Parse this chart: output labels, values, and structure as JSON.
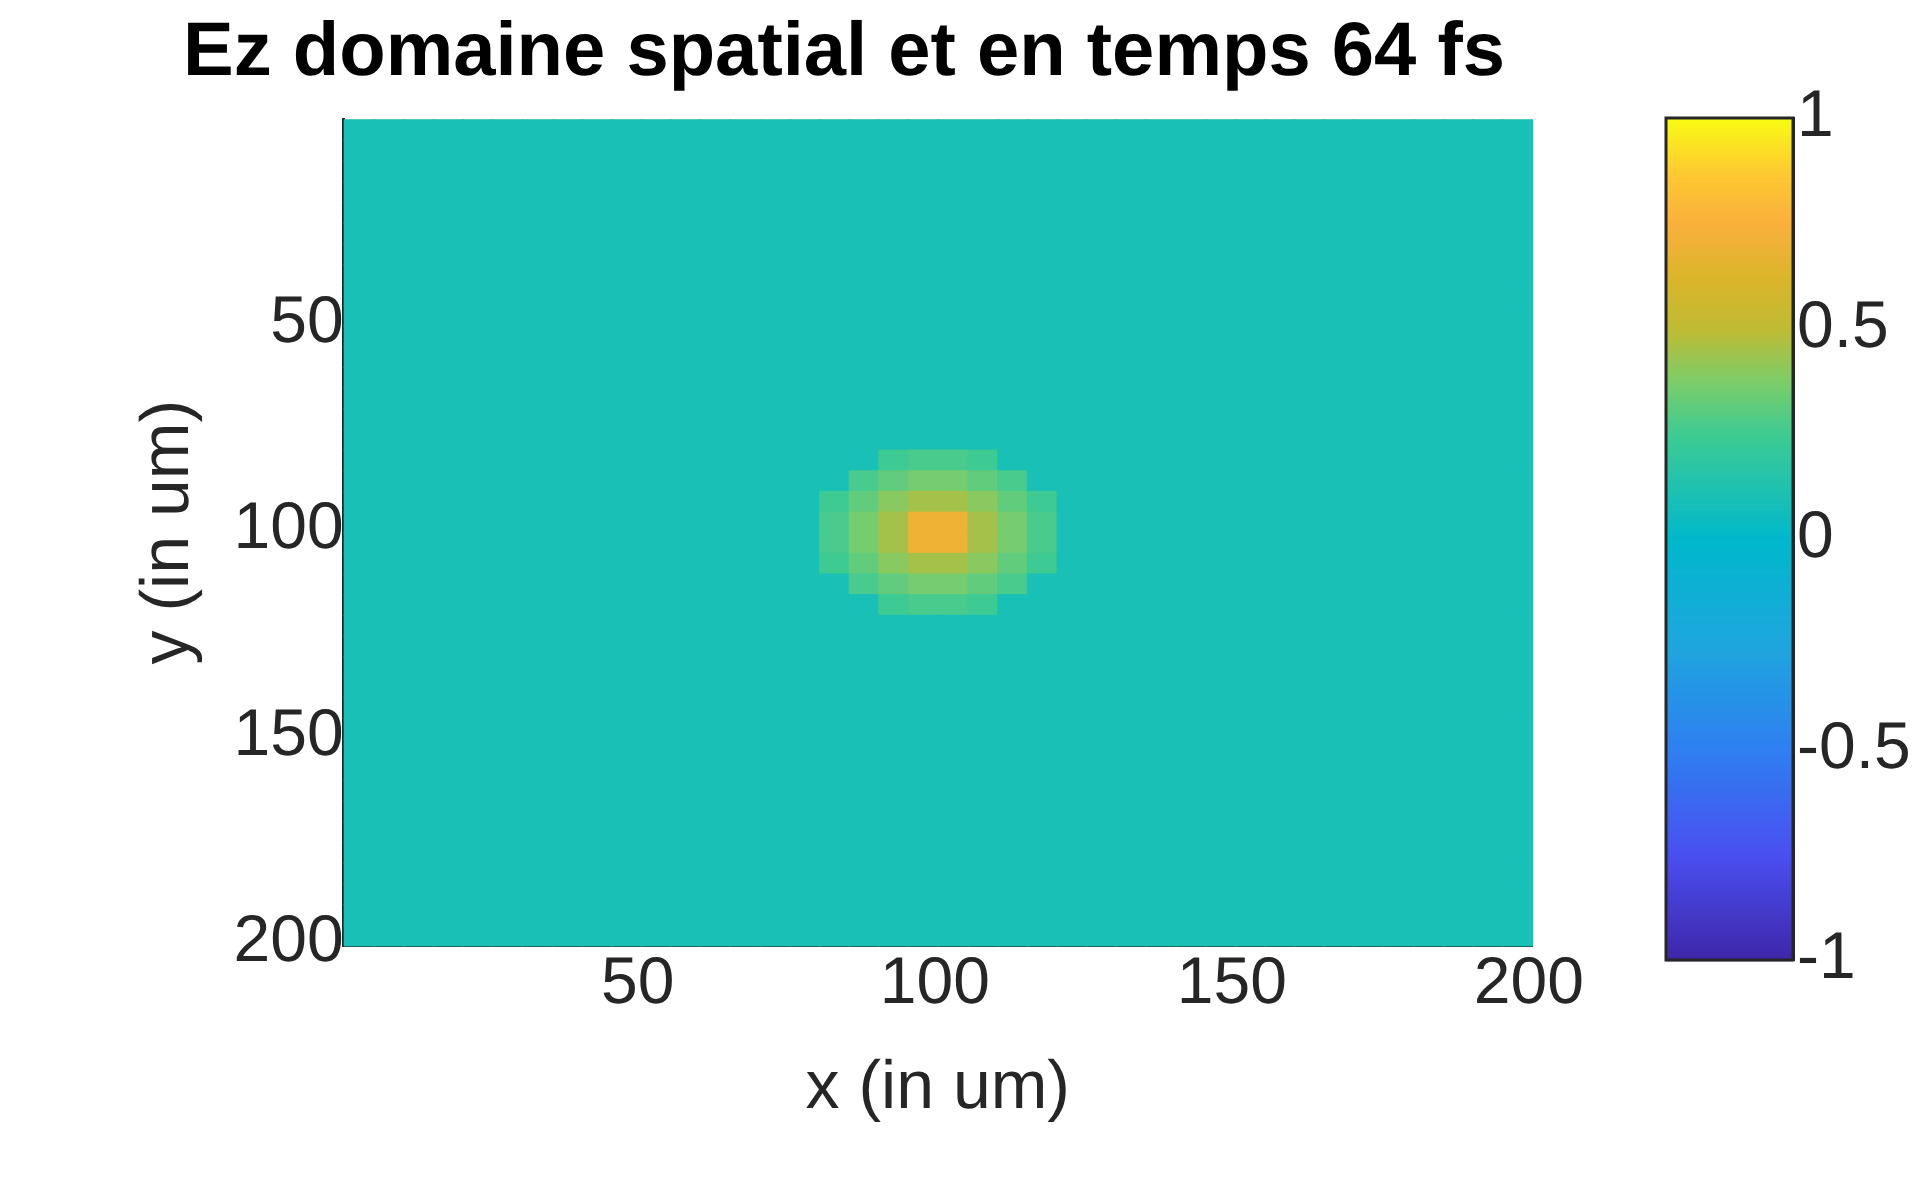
{
  "chart_data": {
    "type": "heatmap",
    "title": "Ez domaine spatial et en temps 64 fs",
    "xlabel": "x (in um)",
    "ylabel": "y (in um)",
    "xlim": [
      0.5,
      200.5
    ],
    "xticks": [
      50,
      100,
      150,
      200
    ],
    "ylim": [
      200.5,
      0.5
    ],
    "yticks": [
      50,
      100,
      150,
      200
    ],
    "clim": [
      -1,
      1
    ],
    "cticks": [
      -1,
      -0.5,
      0,
      0.5,
      1
    ],
    "cells": [
      [
        0.1,
        0.1,
        0.1,
        0.1,
        0.1,
        0.1,
        0.1,
        0.1,
        0.1,
        0.1,
        0.1,
        0.1,
        0.1,
        0.1,
        0.1,
        0.1,
        0.1,
        0.1,
        0.1,
        0.1,
        0.1,
        0.1,
        0.1,
        0.1,
        0.1,
        0.1,
        0.1,
        0.1,
        0.1,
        0.1,
        0.1,
        0.1,
        0.1,
        0.1,
        0.1,
        0.1,
        0.1,
        0.1,
        0.1,
        0.1
      ],
      [
        0.1,
        0.1,
        0.1,
        0.1,
        0.1,
        0.1,
        0.1,
        0.1,
        0.1,
        0.1,
        0.1,
        0.1,
        0.1,
        0.1,
        0.1,
        0.1,
        0.1,
        0.1,
        0.1,
        0.1,
        0.1,
        0.1,
        0.1,
        0.1,
        0.1,
        0.1,
        0.1,
        0.1,
        0.1,
        0.1,
        0.1,
        0.1,
        0.1,
        0.1,
        0.1,
        0.1,
        0.1,
        0.1,
        0.1,
        0.1
      ],
      [
        0.1,
        0.1,
        0.1,
        0.1,
        0.1,
        0.1,
        0.1,
        0.1,
        0.1,
        0.1,
        0.1,
        0.1,
        0.1,
        0.1,
        0.1,
        0.1,
        0.1,
        0.1,
        0.1,
        0.1,
        0.1,
        0.1,
        0.1,
        0.1,
        0.1,
        0.1,
        0.1,
        0.1,
        0.1,
        0.1,
        0.1,
        0.1,
        0.1,
        0.1,
        0.1,
        0.1,
        0.1,
        0.1,
        0.1,
        0.1
      ],
      [
        0.1,
        0.1,
        0.1,
        0.1,
        0.1,
        0.1,
        0.1,
        0.1,
        0.1,
        0.1,
        0.1,
        0.1,
        0.1,
        0.1,
        0.1,
        0.1,
        0.1,
        0.1,
        0.1,
        0.1,
        0.1,
        0.1,
        0.1,
        0.1,
        0.1,
        0.1,
        0.1,
        0.1,
        0.1,
        0.1,
        0.1,
        0.1,
        0.1,
        0.1,
        0.1,
        0.1,
        0.1,
        0.1,
        0.1,
        0.1
      ],
      [
        0.1,
        0.1,
        0.1,
        0.1,
        0.1,
        0.1,
        0.1,
        0.1,
        0.1,
        0.1,
        0.1,
        0.1,
        0.1,
        0.1,
        0.1,
        0.1,
        0.1,
        0.1,
        0.1,
        0.1,
        0.1,
        0.1,
        0.1,
        0.1,
        0.1,
        0.1,
        0.1,
        0.1,
        0.1,
        0.1,
        0.1,
        0.1,
        0.1,
        0.1,
        0.1,
        0.1,
        0.1,
        0.1,
        0.1,
        0.1
      ],
      [
        0.1,
        0.1,
        0.1,
        0.1,
        0.1,
        0.1,
        0.1,
        0.1,
        0.1,
        0.1,
        0.1,
        0.1,
        0.1,
        0.1,
        0.1,
        0.1,
        0.1,
        0.1,
        0.1,
        0.1,
        0.1,
        0.1,
        0.1,
        0.1,
        0.1,
        0.1,
        0.1,
        0.1,
        0.1,
        0.1,
        0.1,
        0.1,
        0.1,
        0.1,
        0.1,
        0.1,
        0.1,
        0.1,
        0.1,
        0.1
      ],
      [
        0.1,
        0.1,
        0.1,
        0.1,
        0.1,
        0.1,
        0.1,
        0.1,
        0.1,
        0.1,
        0.1,
        0.1,
        0.1,
        0.1,
        0.1,
        0.1,
        0.1,
        0.1,
        0.1,
        0.1,
        0.1,
        0.1,
        0.1,
        0.1,
        0.1,
        0.1,
        0.1,
        0.1,
        0.1,
        0.1,
        0.1,
        0.1,
        0.1,
        0.1,
        0.1,
        0.1,
        0.1,
        0.1,
        0.1,
        0.1
      ],
      [
        0.1,
        0.1,
        0.1,
        0.1,
        0.1,
        0.1,
        0.1,
        0.1,
        0.1,
        0.1,
        0.1,
        0.1,
        0.1,
        0.1,
        0.1,
        0.1,
        0.1,
        0.1,
        0.1,
        0.1,
        0.1,
        0.1,
        0.1,
        0.1,
        0.1,
        0.1,
        0.1,
        0.1,
        0.1,
        0.1,
        0.1,
        0.1,
        0.1,
        0.1,
        0.1,
        0.1,
        0.1,
        0.1,
        0.1,
        0.1
      ],
      [
        0.1,
        0.1,
        0.1,
        0.1,
        0.1,
        0.1,
        0.1,
        0.1,
        0.1,
        0.1,
        0.1,
        0.1,
        0.1,
        0.1,
        0.1,
        0.1,
        0.1,
        0.1,
        0.1,
        0.1,
        0.1,
        0.1,
        0.1,
        0.1,
        0.1,
        0.1,
        0.1,
        0.1,
        0.1,
        0.1,
        0.1,
        0.1,
        0.1,
        0.1,
        0.1,
        0.1,
        0.1,
        0.1,
        0.1,
        0.1
      ],
      [
        0.1,
        0.1,
        0.1,
        0.1,
        0.1,
        0.1,
        0.1,
        0.1,
        0.1,
        0.1,
        0.1,
        0.1,
        0.1,
        0.1,
        0.1,
        0.1,
        0.1,
        0.1,
        0.1,
        0.1,
        0.1,
        0.1,
        0.1,
        0.1,
        0.1,
        0.1,
        0.1,
        0.1,
        0.1,
        0.1,
        0.1,
        0.1,
        0.1,
        0.1,
        0.1,
        0.1,
        0.1,
        0.1,
        0.1,
        0.1
      ],
      [
        0.1,
        0.1,
        0.1,
        0.1,
        0.1,
        0.1,
        0.1,
        0.1,
        0.1,
        0.1,
        0.1,
        0.1,
        0.1,
        0.1,
        0.1,
        0.1,
        0.1,
        0.1,
        0.1,
        0.1,
        0.1,
        0.1,
        0.1,
        0.1,
        0.1,
        0.1,
        0.1,
        0.1,
        0.1,
        0.1,
        0.1,
        0.1,
        0.1,
        0.1,
        0.1,
        0.1,
        0.1,
        0.1,
        0.1,
        0.1
      ],
      [
        0.1,
        0.1,
        0.1,
        0.1,
        0.1,
        0.1,
        0.1,
        0.1,
        0.1,
        0.1,
        0.1,
        0.1,
        0.1,
        0.1,
        0.1,
        0.1,
        0.1,
        0.1,
        0.1,
        0.1,
        0.1,
        0.1,
        0.1,
        0.1,
        0.1,
        0.1,
        0.1,
        0.1,
        0.1,
        0.1,
        0.1,
        0.1,
        0.1,
        0.1,
        0.1,
        0.1,
        0.1,
        0.1,
        0.1,
        0.1
      ],
      [
        0.1,
        0.1,
        0.1,
        0.1,
        0.1,
        0.1,
        0.1,
        0.1,
        0.1,
        0.1,
        0.1,
        0.1,
        0.1,
        0.1,
        0.1,
        0.1,
        0.1,
        0.1,
        0.1,
        0.1,
        0.1,
        0.1,
        0.1,
        0.1,
        0.1,
        0.1,
        0.1,
        0.1,
        0.1,
        0.1,
        0.1,
        0.1,
        0.1,
        0.1,
        0.1,
        0.1,
        0.1,
        0.1,
        0.1,
        0.1
      ],
      [
        0.1,
        0.1,
        0.1,
        0.1,
        0.1,
        0.1,
        0.1,
        0.1,
        0.1,
        0.1,
        0.1,
        0.1,
        0.1,
        0.1,
        0.1,
        0.1,
        0.1,
        0.1,
        0.1,
        0.1,
        0.1,
        0.1,
        0.1,
        0.1,
        0.1,
        0.1,
        0.1,
        0.1,
        0.1,
        0.1,
        0.1,
        0.1,
        0.1,
        0.1,
        0.1,
        0.1,
        0.1,
        0.1,
        0.1,
        0.1
      ],
      [
        0.1,
        0.1,
        0.1,
        0.1,
        0.1,
        0.1,
        0.1,
        0.1,
        0.1,
        0.1,
        0.1,
        0.1,
        0.1,
        0.1,
        0.1,
        0.1,
        0.1,
        0.1,
        0.1,
        0.1,
        0.1,
        0.1,
        0.1,
        0.1,
        0.1,
        0.1,
        0.1,
        0.1,
        0.1,
        0.1,
        0.1,
        0.1,
        0.1,
        0.1,
        0.1,
        0.1,
        0.1,
        0.1,
        0.1,
        0.1
      ],
      [
        0.1,
        0.1,
        0.1,
        0.1,
        0.1,
        0.1,
        0.1,
        0.1,
        0.1,
        0.1,
        0.1,
        0.1,
        0.1,
        0.1,
        0.1,
        0.1,
        0.1,
        0.1,
        0.1,
        0.1,
        0.1,
        0.1,
        0.1,
        0.1,
        0.1,
        0.1,
        0.1,
        0.1,
        0.1,
        0.1,
        0.1,
        0.1,
        0.1,
        0.1,
        0.1,
        0.1,
        0.1,
        0.1,
        0.1,
        0.1
      ],
      [
        0.1,
        0.1,
        0.1,
        0.1,
        0.1,
        0.1,
        0.1,
        0.1,
        0.1,
        0.1,
        0.1,
        0.1,
        0.1,
        0.1,
        0.1,
        0.1,
        0.1,
        0.1,
        0.25,
        0.27,
        0.27,
        0.25,
        0.1,
        0.1,
        0.1,
        0.1,
        0.1,
        0.1,
        0.1,
        0.1,
        0.1,
        0.1,
        0.1,
        0.1,
        0.1,
        0.1,
        0.1,
        0.1,
        0.1,
        0.1
      ],
      [
        0.1,
        0.1,
        0.1,
        0.1,
        0.1,
        0.1,
        0.1,
        0.1,
        0.1,
        0.1,
        0.1,
        0.1,
        0.1,
        0.1,
        0.1,
        0.1,
        0.1,
        0.27,
        0.32,
        0.36,
        0.36,
        0.32,
        0.27,
        0.1,
        0.1,
        0.1,
        0.1,
        0.1,
        0.1,
        0.1,
        0.1,
        0.1,
        0.1,
        0.1,
        0.1,
        0.1,
        0.1,
        0.1,
        0.1,
        0.1
      ],
      [
        0.1,
        0.1,
        0.1,
        0.1,
        0.1,
        0.1,
        0.1,
        0.1,
        0.1,
        0.1,
        0.1,
        0.1,
        0.1,
        0.1,
        0.1,
        0.1,
        0.25,
        0.32,
        0.4,
        0.45,
        0.45,
        0.4,
        0.32,
        0.25,
        0.1,
        0.1,
        0.1,
        0.1,
        0.1,
        0.1,
        0.1,
        0.1,
        0.1,
        0.1,
        0.1,
        0.1,
        0.1,
        0.1,
        0.1,
        0.1
      ],
      [
        0.1,
        0.1,
        0.1,
        0.1,
        0.1,
        0.1,
        0.1,
        0.1,
        0.1,
        0.1,
        0.1,
        0.1,
        0.1,
        0.1,
        0.1,
        0.1,
        0.27,
        0.36,
        0.45,
        0.7,
        0.7,
        0.45,
        0.36,
        0.27,
        0.1,
        0.1,
        0.1,
        0.1,
        0.1,
        0.1,
        0.1,
        0.1,
        0.1,
        0.1,
        0.1,
        0.1,
        0.1,
        0.1,
        0.1,
        0.1
      ],
      [
        0.1,
        0.1,
        0.1,
        0.1,
        0.1,
        0.1,
        0.1,
        0.1,
        0.1,
        0.1,
        0.1,
        0.1,
        0.1,
        0.1,
        0.1,
        0.1,
        0.27,
        0.36,
        0.45,
        0.7,
        0.7,
        0.45,
        0.36,
        0.27,
        0.1,
        0.1,
        0.1,
        0.1,
        0.1,
        0.1,
        0.1,
        0.1,
        0.1,
        0.1,
        0.1,
        0.1,
        0.1,
        0.1,
        0.1,
        0.1
      ],
      [
        0.1,
        0.1,
        0.1,
        0.1,
        0.1,
        0.1,
        0.1,
        0.1,
        0.1,
        0.1,
        0.1,
        0.1,
        0.1,
        0.1,
        0.1,
        0.1,
        0.25,
        0.32,
        0.4,
        0.45,
        0.45,
        0.4,
        0.32,
        0.25,
        0.1,
        0.1,
        0.1,
        0.1,
        0.1,
        0.1,
        0.1,
        0.1,
        0.1,
        0.1,
        0.1,
        0.1,
        0.1,
        0.1,
        0.1,
        0.1
      ],
      [
        0.1,
        0.1,
        0.1,
        0.1,
        0.1,
        0.1,
        0.1,
        0.1,
        0.1,
        0.1,
        0.1,
        0.1,
        0.1,
        0.1,
        0.1,
        0.1,
        0.1,
        0.27,
        0.32,
        0.36,
        0.36,
        0.32,
        0.27,
        0.1,
        0.1,
        0.1,
        0.1,
        0.1,
        0.1,
        0.1,
        0.1,
        0.1,
        0.1,
        0.1,
        0.1,
        0.1,
        0.1,
        0.1,
        0.1,
        0.1
      ],
      [
        0.1,
        0.1,
        0.1,
        0.1,
        0.1,
        0.1,
        0.1,
        0.1,
        0.1,
        0.1,
        0.1,
        0.1,
        0.1,
        0.1,
        0.1,
        0.1,
        0.1,
        0.1,
        0.25,
        0.27,
        0.27,
        0.25,
        0.1,
        0.1,
        0.1,
        0.1,
        0.1,
        0.1,
        0.1,
        0.1,
        0.1,
        0.1,
        0.1,
        0.1,
        0.1,
        0.1,
        0.1,
        0.1,
        0.1,
        0.1
      ],
      [
        0.1,
        0.1,
        0.1,
        0.1,
        0.1,
        0.1,
        0.1,
        0.1,
        0.1,
        0.1,
        0.1,
        0.1,
        0.1,
        0.1,
        0.1,
        0.1,
        0.1,
        0.1,
        0.1,
        0.1,
        0.1,
        0.1,
        0.1,
        0.1,
        0.1,
        0.1,
        0.1,
        0.1,
        0.1,
        0.1,
        0.1,
        0.1,
        0.1,
        0.1,
        0.1,
        0.1,
        0.1,
        0.1,
        0.1,
        0.1
      ],
      [
        0.1,
        0.1,
        0.1,
        0.1,
        0.1,
        0.1,
        0.1,
        0.1,
        0.1,
        0.1,
        0.1,
        0.1,
        0.1,
        0.1,
        0.1,
        0.1,
        0.1,
        0.1,
        0.1,
        0.1,
        0.1,
        0.1,
        0.1,
        0.1,
        0.1,
        0.1,
        0.1,
        0.1,
        0.1,
        0.1,
        0.1,
        0.1,
        0.1,
        0.1,
        0.1,
        0.1,
        0.1,
        0.1,
        0.1,
        0.1
      ],
      [
        0.1,
        0.1,
        0.1,
        0.1,
        0.1,
        0.1,
        0.1,
        0.1,
        0.1,
        0.1,
        0.1,
        0.1,
        0.1,
        0.1,
        0.1,
        0.1,
        0.1,
        0.1,
        0.1,
        0.1,
        0.1,
        0.1,
        0.1,
        0.1,
        0.1,
        0.1,
        0.1,
        0.1,
        0.1,
        0.1,
        0.1,
        0.1,
        0.1,
        0.1,
        0.1,
        0.1,
        0.1,
        0.1,
        0.1,
        0.1
      ],
      [
        0.1,
        0.1,
        0.1,
        0.1,
        0.1,
        0.1,
        0.1,
        0.1,
        0.1,
        0.1,
        0.1,
        0.1,
        0.1,
        0.1,
        0.1,
        0.1,
        0.1,
        0.1,
        0.1,
        0.1,
        0.1,
        0.1,
        0.1,
        0.1,
        0.1,
        0.1,
        0.1,
        0.1,
        0.1,
        0.1,
        0.1,
        0.1,
        0.1,
        0.1,
        0.1,
        0.1,
        0.1,
        0.1,
        0.1,
        0.1
      ],
      [
        0.1,
        0.1,
        0.1,
        0.1,
        0.1,
        0.1,
        0.1,
        0.1,
        0.1,
        0.1,
        0.1,
        0.1,
        0.1,
        0.1,
        0.1,
        0.1,
        0.1,
        0.1,
        0.1,
        0.1,
        0.1,
        0.1,
        0.1,
        0.1,
        0.1,
        0.1,
        0.1,
        0.1,
        0.1,
        0.1,
        0.1,
        0.1,
        0.1,
        0.1,
        0.1,
        0.1,
        0.1,
        0.1,
        0.1,
        0.1
      ],
      [
        0.1,
        0.1,
        0.1,
        0.1,
        0.1,
        0.1,
        0.1,
        0.1,
        0.1,
        0.1,
        0.1,
        0.1,
        0.1,
        0.1,
        0.1,
        0.1,
        0.1,
        0.1,
        0.1,
        0.1,
        0.1,
        0.1,
        0.1,
        0.1,
        0.1,
        0.1,
        0.1,
        0.1,
        0.1,
        0.1,
        0.1,
        0.1,
        0.1,
        0.1,
        0.1,
        0.1,
        0.1,
        0.1,
        0.1,
        0.1
      ],
      [
        0.1,
        0.1,
        0.1,
        0.1,
        0.1,
        0.1,
        0.1,
        0.1,
        0.1,
        0.1,
        0.1,
        0.1,
        0.1,
        0.1,
        0.1,
        0.1,
        0.1,
        0.1,
        0.1,
        0.1,
        0.1,
        0.1,
        0.1,
        0.1,
        0.1,
        0.1,
        0.1,
        0.1,
        0.1,
        0.1,
        0.1,
        0.1,
        0.1,
        0.1,
        0.1,
        0.1,
        0.1,
        0.1,
        0.1,
        0.1
      ],
      [
        0.1,
        0.1,
        0.1,
        0.1,
        0.1,
        0.1,
        0.1,
        0.1,
        0.1,
        0.1,
        0.1,
        0.1,
        0.1,
        0.1,
        0.1,
        0.1,
        0.1,
        0.1,
        0.1,
        0.1,
        0.1,
        0.1,
        0.1,
        0.1,
        0.1,
        0.1,
        0.1,
        0.1,
        0.1,
        0.1,
        0.1,
        0.1,
        0.1,
        0.1,
        0.1,
        0.1,
        0.1,
        0.1,
        0.1,
        0.1
      ],
      [
        0.1,
        0.1,
        0.1,
        0.1,
        0.1,
        0.1,
        0.1,
        0.1,
        0.1,
        0.1,
        0.1,
        0.1,
        0.1,
        0.1,
        0.1,
        0.1,
        0.1,
        0.1,
        0.1,
        0.1,
        0.1,
        0.1,
        0.1,
        0.1,
        0.1,
        0.1,
        0.1,
        0.1,
        0.1,
        0.1,
        0.1,
        0.1,
        0.1,
        0.1,
        0.1,
        0.1,
        0.1,
        0.1,
        0.1,
        0.1
      ],
      [
        0.1,
        0.1,
        0.1,
        0.1,
        0.1,
        0.1,
        0.1,
        0.1,
        0.1,
        0.1,
        0.1,
        0.1,
        0.1,
        0.1,
        0.1,
        0.1,
        0.1,
        0.1,
        0.1,
        0.1,
        0.1,
        0.1,
        0.1,
        0.1,
        0.1,
        0.1,
        0.1,
        0.1,
        0.1,
        0.1,
        0.1,
        0.1,
        0.1,
        0.1,
        0.1,
        0.1,
        0.1,
        0.1,
        0.1,
        0.1
      ],
      [
        0.1,
        0.1,
        0.1,
        0.1,
        0.1,
        0.1,
        0.1,
        0.1,
        0.1,
        0.1,
        0.1,
        0.1,
        0.1,
        0.1,
        0.1,
        0.1,
        0.1,
        0.1,
        0.1,
        0.1,
        0.1,
        0.1,
        0.1,
        0.1,
        0.1,
        0.1,
        0.1,
        0.1,
        0.1,
        0.1,
        0.1,
        0.1,
        0.1,
        0.1,
        0.1,
        0.1,
        0.1,
        0.1,
        0.1,
        0.1
      ],
      [
        0.1,
        0.1,
        0.1,
        0.1,
        0.1,
        0.1,
        0.1,
        0.1,
        0.1,
        0.1,
        0.1,
        0.1,
        0.1,
        0.1,
        0.1,
        0.1,
        0.1,
        0.1,
        0.1,
        0.1,
        0.1,
        0.1,
        0.1,
        0.1,
        0.1,
        0.1,
        0.1,
        0.1,
        0.1,
        0.1,
        0.1,
        0.1,
        0.1,
        0.1,
        0.1,
        0.1,
        0.1,
        0.1,
        0.1,
        0.1
      ],
      [
        0.1,
        0.1,
        0.1,
        0.1,
        0.1,
        0.1,
        0.1,
        0.1,
        0.1,
        0.1,
        0.1,
        0.1,
        0.1,
        0.1,
        0.1,
        0.1,
        0.1,
        0.1,
        0.1,
        0.1,
        0.1,
        0.1,
        0.1,
        0.1,
        0.1,
        0.1,
        0.1,
        0.1,
        0.1,
        0.1,
        0.1,
        0.1,
        0.1,
        0.1,
        0.1,
        0.1,
        0.1,
        0.1,
        0.1,
        0.1
      ],
      [
        0.1,
        0.1,
        0.1,
        0.1,
        0.1,
        0.1,
        0.1,
        0.1,
        0.1,
        0.1,
        0.1,
        0.1,
        0.1,
        0.1,
        0.1,
        0.1,
        0.1,
        0.1,
        0.1,
        0.1,
        0.1,
        0.1,
        0.1,
        0.1,
        0.1,
        0.1,
        0.1,
        0.1,
        0.1,
        0.1,
        0.1,
        0.1,
        0.1,
        0.1,
        0.1,
        0.1,
        0.1,
        0.1,
        0.1,
        0.1
      ],
      [
        0.1,
        0.1,
        0.1,
        0.1,
        0.1,
        0.1,
        0.1,
        0.1,
        0.1,
        0.1,
        0.1,
        0.1,
        0.1,
        0.1,
        0.1,
        0.1,
        0.1,
        0.1,
        0.1,
        0.1,
        0.1,
        0.1,
        0.1,
        0.1,
        0.1,
        0.1,
        0.1,
        0.1,
        0.1,
        0.1,
        0.1,
        0.1,
        0.1,
        0.1,
        0.1,
        0.1,
        0.1,
        0.1,
        0.1,
        0.1
      ],
      [
        0.1,
        0.1,
        0.1,
        0.1,
        0.1,
        0.1,
        0.1,
        0.1,
        0.1,
        0.1,
        0.1,
        0.1,
        0.1,
        0.1,
        0.1,
        0.1,
        0.1,
        0.1,
        0.1,
        0.1,
        0.1,
        0.1,
        0.1,
        0.1,
        0.1,
        0.1,
        0.1,
        0.1,
        0.1,
        0.1,
        0.1,
        0.1,
        0.1,
        0.1,
        0.1,
        0.1,
        0.1,
        0.1,
        0.1,
        0.1
      ]
    ]
  }
}
